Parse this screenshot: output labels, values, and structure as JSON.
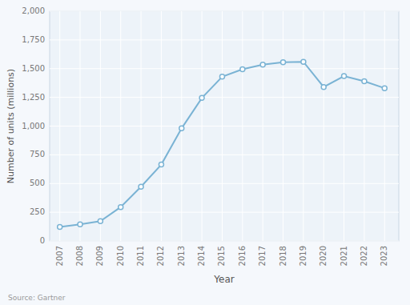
{
  "chart_data": {
    "type": "line",
    "x": [
      2007,
      2008,
      2009,
      2010,
      2011,
      2012,
      2013,
      2014,
      2015,
      2016,
      2017,
      2018,
      2019,
      2020,
      2021,
      2022,
      2023
    ],
    "values": [
      122,
      145,
      172,
      295,
      472,
      665,
      980,
      1245,
      1430,
      1495,
      1535,
      1555,
      1560,
      1340,
      1435,
      1390,
      1330
    ],
    "color": "#7ab3d4",
    "marker": "circle",
    "xlabel": "Year",
    "ylabel": "Number of units (millions)",
    "annotations": [
      "Source: Gartner"
    ],
    "xlim": [
      2006.5,
      2023.7
    ],
    "xticks": [
      2007,
      2008,
      2009,
      2010,
      2011,
      2012,
      2013,
      2014,
      2015,
      2016,
      2017,
      2018,
      2019,
      2020,
      2021,
      2022,
      2023
    ],
    "ylim": [
      0,
      2000
    ],
    "yticks": [
      0,
      250,
      500,
      750,
      {
        "value": 1000,
        "label": "1,000"
      },
      {
        "value": 1250,
        "label": "1,250"
      },
      {
        "value": 1500,
        "label": "1,500"
      },
      {
        "value": 1750,
        "label": "1,750"
      },
      {
        "value": 2000,
        "label": "2,000"
      }
    ],
    "grid": true
  }
}
